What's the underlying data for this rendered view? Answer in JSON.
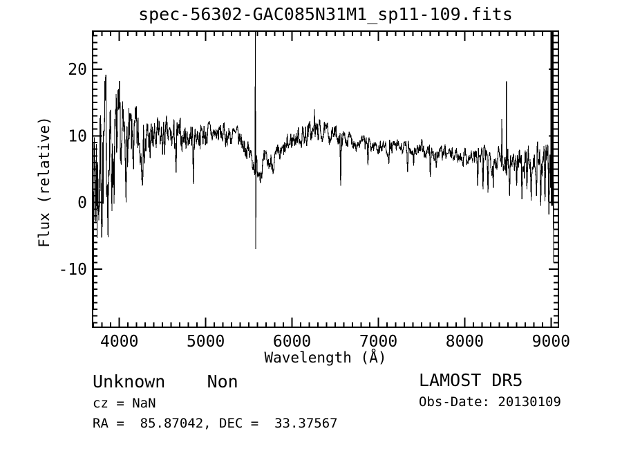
{
  "window": {
    "background": "#ffffff",
    "foreground": "#000000"
  },
  "chart_data": {
    "type": "line",
    "title": "spec-56302-GAC085N31M1_sp11-109.fits",
    "xlabel": "Wavelength (Å)",
    "ylabel": "Flux (relative)",
    "xlim": [
      3690,
      9085
    ],
    "ylim": [
      -18.7,
      25.7
    ],
    "x_ticks": [
      4000,
      5000,
      6000,
      7000,
      8000,
      9000
    ],
    "x_minor_step": 100,
    "y_ticks": [
      -10,
      0,
      10,
      20
    ],
    "y_minor_step": 1,
    "line_color": "#000000",
    "wavelength_range": [
      3697,
      9028
    ],
    "samples": 1300,
    "seed": 7,
    "continuum": [
      [
        3697,
        2.5
      ],
      [
        3720,
        4
      ],
      [
        3760,
        5.5
      ],
      [
        3800,
        6.5
      ],
      [
        3850,
        7
      ],
      [
        3900,
        7.5
      ],
      [
        3950,
        7.8
      ],
      [
        4000,
        8
      ],
      [
        4100,
        8.3
      ],
      [
        4200,
        8.6
      ],
      [
        4300,
        8.8
      ],
      [
        4400,
        9.2
      ],
      [
        4500,
        9.5
      ],
      [
        4600,
        9.6
      ],
      [
        4700,
        9.8
      ],
      [
        4800,
        10
      ],
      [
        4900,
        10.2
      ],
      [
        5000,
        10.2
      ],
      [
        5100,
        10.3
      ],
      [
        5200,
        10.2
      ],
      [
        5300,
        10
      ],
      [
        5400,
        9.4
      ],
      [
        5450,
        8.7
      ],
      [
        5500,
        7.4
      ],
      [
        5560,
        6
      ],
      [
        5600,
        5.2
      ],
      [
        5650,
        5.4
      ],
      [
        5700,
        5.7
      ],
      [
        5750,
        6
      ],
      [
        5800,
        6.3
      ],
      [
        5850,
        6.8
      ],
      [
        5900,
        7.4
      ],
      [
        5950,
        8.4
      ],
      [
        6000,
        9.4
      ],
      [
        6050,
        9.8
      ],
      [
        6100,
        10
      ],
      [
        6200,
        10.4
      ],
      [
        6300,
        10.8
      ],
      [
        6400,
        10.4
      ],
      [
        6500,
        10.2
      ],
      [
        6600,
        9.7
      ],
      [
        6700,
        9.3
      ],
      [
        6800,
        8.9
      ],
      [
        6900,
        8.6
      ],
      [
        7000,
        8.4
      ],
      [
        7100,
        8.3
      ],
      [
        7200,
        8.2
      ],
      [
        7300,
        8.1
      ],
      [
        7400,
        8
      ],
      [
        7500,
        7.8
      ],
      [
        7600,
        7.5
      ],
      [
        7700,
        7.3
      ],
      [
        7800,
        7.2
      ],
      [
        7900,
        7.1
      ],
      [
        8000,
        7
      ],
      [
        8100,
        6.8
      ],
      [
        8200,
        6.7
      ],
      [
        8300,
        6.6
      ],
      [
        8400,
        6.6
      ],
      [
        8500,
        6.5
      ],
      [
        8600,
        6.4
      ],
      [
        8700,
        6.3
      ],
      [
        8800,
        6.3
      ],
      [
        8900,
        6
      ],
      [
        8950,
        5.6
      ],
      [
        8998,
        4.5
      ]
    ],
    "noise_amplitude": [
      [
        3697,
        15
      ],
      [
        3750,
        13
      ],
      [
        3800,
        11
      ],
      [
        3850,
        9.5
      ],
      [
        3900,
        8.5
      ],
      [
        3950,
        7.5
      ],
      [
        4000,
        6.5
      ],
      [
        4100,
        5.2
      ],
      [
        4200,
        4.4
      ],
      [
        4300,
        3.6
      ],
      [
        4400,
        3
      ],
      [
        4500,
        2.6
      ],
      [
        4600,
        2.3
      ],
      [
        4700,
        2.1
      ],
      [
        4800,
        1.9
      ],
      [
        5000,
        1.7
      ],
      [
        5200,
        1.6
      ],
      [
        5400,
        1.5
      ],
      [
        5600,
        1.6
      ],
      [
        5800,
        1.4
      ],
      [
        6000,
        1.5
      ],
      [
        6200,
        1.6
      ],
      [
        6300,
        1.4
      ],
      [
        6400,
        1.2
      ],
      [
        6600,
        1.1
      ],
      [
        6800,
        1
      ],
      [
        7000,
        1.1
      ],
      [
        7200,
        1
      ],
      [
        7400,
        1
      ],
      [
        7600,
        1.2
      ],
      [
        7800,
        1
      ],
      [
        8000,
        1.1
      ],
      [
        8100,
        1.3
      ],
      [
        8200,
        1.6
      ],
      [
        8300,
        1.7
      ],
      [
        8400,
        1.5
      ],
      [
        8500,
        1.8
      ],
      [
        8600,
        2
      ],
      [
        8700,
        2.1
      ],
      [
        8800,
        2.2
      ],
      [
        8900,
        2.4
      ],
      [
        8998,
        2.8
      ]
    ],
    "dips": [
      [
        4658,
        4.5
      ],
      [
        4859,
        2.8
      ],
      [
        6565,
        2.5
      ],
      [
        6880,
        5.6
      ],
      [
        7120,
        5.8
      ],
      [
        7340,
        4.6
      ],
      [
        7410,
        5.5
      ],
      [
        7600,
        3.8
      ],
      [
        7670,
        5.2
      ],
      [
        8150,
        2.5
      ],
      [
        8210,
        2.0
      ],
      [
        8270,
        1.5
      ],
      [
        8330,
        2.2
      ],
      [
        8520,
        1.0
      ],
      [
        8600,
        2.5
      ],
      [
        8665,
        0.5
      ],
      [
        8720,
        2.0
      ],
      [
        8770,
        0.3
      ],
      [
        8830,
        1.0
      ],
      [
        8880,
        -0.5
      ],
      [
        8930,
        0.2
      ],
      [
        8975,
        -1.8
      ]
    ],
    "spikes": [
      [
        5577,
        26,
        -7
      ],
      [
        6260,
        14,
        null
      ],
      [
        8428,
        12.5,
        null
      ],
      [
        8481,
        18.2,
        null
      ]
    ],
    "edge_block": {
      "range": [
        8998,
        9028
      ],
      "hi": 26,
      "lo": -0.5,
      "end": -9
    }
  },
  "annotations": {
    "class_label": "Unknown    Non",
    "cz": "cz = NaN",
    "coords": "RA =  85.87042, DEC =  33.37567",
    "survey": "LAMOST DR5",
    "obs_date": "Obs-Date: 20130109"
  }
}
